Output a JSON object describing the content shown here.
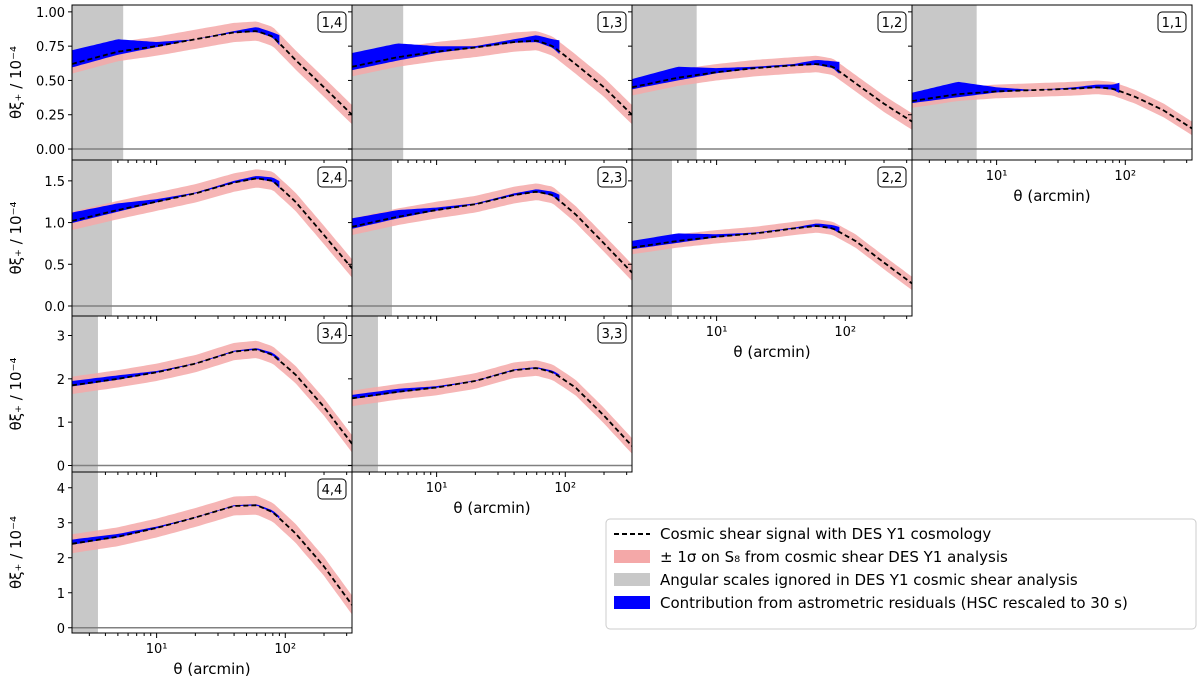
{
  "figure": {
    "ylabel": "θξ₊ / 10⁻⁴",
    "xlabel": "θ (arcmin)",
    "colors": {
      "signal": "#000000",
      "sigma_band": "#f4a8a8",
      "ignored": "#c8c8c8",
      "astrometric": "#0000ff",
      "zero_line": "#808080"
    }
  },
  "legend": {
    "placement": "lower-right",
    "entries": [
      {
        "key": "signal",
        "label": "Cosmic shear signal with DES Y1 cosmology"
      },
      {
        "key": "sigma_band",
        "label": "± 1σ on S₈ from cosmic shear DES Y1 analysis"
      },
      {
        "key": "ignored",
        "label": "Angular scales ignored in DES Y1 cosmic shear analysis"
      },
      {
        "key": "astrometric",
        "label": "Contribution from astrometric residuals (HSC rescaled to 30 s)"
      }
    ]
  },
  "chart_data": [
    {
      "type": "line",
      "panel": "1,4",
      "row": 1,
      "col": 1,
      "xscale": "log",
      "xlim": [
        2.2,
        330
      ],
      "ylim": [
        -0.08,
        1.05
      ],
      "yticks": [
        0,
        0.25,
        0.5,
        0.75,
        1
      ],
      "ytick_labels": [
        "0.00",
        "0.25",
        "0.50",
        "0.75",
        "1.00"
      ],
      "ignored_max": 5.5,
      "signal_x": [
        2.2,
        5,
        10,
        20,
        40,
        60,
        80,
        120,
        200,
        330
      ],
      "signal_y": [
        0.62,
        0.71,
        0.75,
        0.8,
        0.85,
        0.86,
        0.82,
        0.65,
        0.45,
        0.25
      ],
      "band_width": 0.07,
      "excess_x": [
        2.2,
        5,
        10,
        20,
        40,
        60,
        80,
        90
      ],
      "excess_y": [
        0.1,
        0.09,
        0.03,
        0.0,
        0.01,
        0.03,
        0.03,
        0.06
      ]
    },
    {
      "type": "line",
      "panel": "1,3",
      "row": 1,
      "col": 2,
      "xscale": "log",
      "xlim": [
        2.2,
        330
      ],
      "ylim": [
        -0.08,
        1.05
      ],
      "yticks": [
        0,
        0.25,
        0.5,
        0.75,
        1
      ],
      "ytick_labels": [],
      "ignored_max": 5.5,
      "signal_x": [
        2.2,
        5,
        10,
        20,
        40,
        60,
        80,
        120,
        200,
        330
      ],
      "signal_y": [
        0.6,
        0.67,
        0.71,
        0.74,
        0.78,
        0.79,
        0.75,
        0.62,
        0.45,
        0.25
      ],
      "band_width": 0.07,
      "excess_x": [
        2.2,
        5,
        10,
        20,
        40,
        60,
        80,
        90
      ],
      "excess_y": [
        0.1,
        0.1,
        0.04,
        0.01,
        0.02,
        0.04,
        0.05,
        0.08
      ]
    },
    {
      "type": "line",
      "panel": "1,2",
      "row": 1,
      "col": 3,
      "xscale": "log",
      "xlim": [
        2.2,
        330
      ],
      "ylim": [
        -0.08,
        1.05
      ],
      "yticks": [
        0,
        0.25,
        0.5,
        0.75,
        1
      ],
      "ytick_labels": [],
      "ignored_max": 7,
      "signal_x": [
        2.2,
        5,
        10,
        20,
        40,
        60,
        80,
        120,
        200,
        330
      ],
      "signal_y": [
        0.45,
        0.52,
        0.56,
        0.59,
        0.61,
        0.62,
        0.6,
        0.48,
        0.33,
        0.2
      ],
      "band_width": 0.06,
      "excess_x": [
        2.2,
        5,
        10,
        20,
        40,
        60,
        80,
        90
      ],
      "excess_y": [
        0.06,
        0.08,
        0.03,
        0.01,
        0.01,
        0.03,
        0.04,
        0.07
      ]
    },
    {
      "type": "line",
      "panel": "1,1",
      "row": 1,
      "col": 4,
      "xscale": "log",
      "xlim": [
        2.2,
        330
      ],
      "ylim": [
        -0.08,
        1.05
      ],
      "yticks": [
        0,
        0.25,
        0.5,
        0.75,
        1
      ],
      "ytick_labels": [],
      "ignored_max": 7,
      "signal_x": [
        2.2,
        5,
        10,
        20,
        40,
        60,
        80,
        120,
        200,
        330
      ],
      "signal_y": [
        0.35,
        0.4,
        0.42,
        0.43,
        0.44,
        0.45,
        0.44,
        0.38,
        0.28,
        0.15
      ],
      "band_width": 0.05,
      "excess_x": [
        2.2,
        5,
        10,
        20,
        40,
        60,
        80,
        90
      ],
      "excess_y": [
        0.06,
        0.09,
        0.03,
        0.0,
        0.01,
        0.02,
        0.03,
        0.06
      ],
      "xticks": [
        10,
        100
      ],
      "xtick_labels": [
        "10¹",
        "10²"
      ],
      "show_xlabel": true
    },
    {
      "type": "line",
      "panel": "2,4",
      "row": 2,
      "col": 1,
      "xscale": "log",
      "xlim": [
        2.2,
        330
      ],
      "ylim": [
        -0.12,
        1.75
      ],
      "yticks": [
        0,
        0.5,
        1,
        1.5
      ],
      "ytick_labels": [
        "0.0",
        "0.5",
        "1.0",
        "1.5"
      ],
      "ignored_max": 4.5,
      "signal_x": [
        2.2,
        5,
        10,
        20,
        40,
        60,
        80,
        120,
        200,
        330
      ],
      "signal_y": [
        1.02,
        1.15,
        1.25,
        1.35,
        1.48,
        1.53,
        1.5,
        1.25,
        0.85,
        0.45
      ],
      "band_width": 0.11,
      "excess_x": [
        2.2,
        5,
        10,
        20,
        40,
        60,
        80,
        90
      ],
      "excess_y": [
        0.1,
        0.08,
        0.03,
        0.01,
        0.02,
        0.03,
        0.04,
        0.07
      ]
    },
    {
      "type": "line",
      "panel": "2,3",
      "row": 2,
      "col": 2,
      "xscale": "log",
      "xlim": [
        2.2,
        330
      ],
      "ylim": [
        -0.12,
        1.75
      ],
      "yticks": [
        0,
        0.5,
        1,
        1.5
      ],
      "ytick_labels": [],
      "ignored_max": 4.5,
      "signal_x": [
        2.2,
        5,
        10,
        20,
        40,
        60,
        80,
        120,
        200,
        330
      ],
      "signal_y": [
        0.95,
        1.07,
        1.15,
        1.22,
        1.33,
        1.37,
        1.33,
        1.1,
        0.75,
        0.4
      ],
      "band_width": 0.1,
      "excess_x": [
        2.2,
        5,
        10,
        20,
        40,
        60,
        80,
        90
      ],
      "excess_y": [
        0.1,
        0.08,
        0.03,
        0.01,
        0.02,
        0.03,
        0.04,
        0.07
      ]
    },
    {
      "type": "line",
      "panel": "2,2",
      "row": 2,
      "col": 3,
      "xscale": "log",
      "xlim": [
        2.2,
        330
      ],
      "ylim": [
        -0.12,
        1.75
      ],
      "yticks": [
        0,
        0.5,
        1,
        1.5
      ],
      "ytick_labels": [],
      "ignored_max": 4.5,
      "signal_x": [
        2.2,
        5,
        10,
        20,
        40,
        60,
        80,
        120,
        200,
        330
      ],
      "signal_y": [
        0.7,
        0.78,
        0.83,
        0.87,
        0.93,
        0.96,
        0.93,
        0.78,
        0.52,
        0.27
      ],
      "band_width": 0.08,
      "excess_x": [
        2.2,
        5,
        10,
        20,
        40,
        60,
        80,
        90
      ],
      "excess_y": [
        0.08,
        0.09,
        0.03,
        0.01,
        0.01,
        0.03,
        0.04,
        0.06
      ],
      "xticks": [
        10,
        100
      ],
      "xtick_labels": [
        "10¹",
        "10²"
      ],
      "show_xlabel": true
    },
    {
      "type": "line",
      "panel": "3,4",
      "row": 3,
      "col": 1,
      "xscale": "log",
      "xlim": [
        2.2,
        330
      ],
      "ylim": [
        -0.15,
        3.45
      ],
      "yticks": [
        0,
        1,
        2,
        3
      ],
      "ytick_labels": [
        "0",
        "1",
        "2",
        "3"
      ],
      "ignored_max": 3.5,
      "signal_x": [
        2.2,
        5,
        10,
        20,
        40,
        60,
        80,
        120,
        200,
        330
      ],
      "signal_y": [
        1.85,
        2.0,
        2.15,
        2.35,
        2.63,
        2.68,
        2.55,
        2.1,
        1.35,
        0.5
      ],
      "band_width": 0.2,
      "excess_x": [
        2.2,
        5,
        10,
        20,
        40,
        60,
        80,
        90
      ],
      "excess_y": [
        0.1,
        0.08,
        0.03,
        0.01,
        0.02,
        0.03,
        0.05,
        0.06
      ]
    },
    {
      "type": "line",
      "panel": "3,3",
      "row": 3,
      "col": 2,
      "xscale": "log",
      "xlim": [
        2.2,
        330
      ],
      "ylim": [
        -0.15,
        3.45
      ],
      "yticks": [
        0,
        1,
        2,
        3
      ],
      "ytick_labels": [],
      "ignored_max": 3.5,
      "signal_x": [
        2.2,
        5,
        10,
        20,
        40,
        60,
        80,
        120,
        200,
        330
      ],
      "signal_y": [
        1.55,
        1.7,
        1.8,
        1.95,
        2.2,
        2.25,
        2.15,
        1.8,
        1.15,
        0.45
      ],
      "band_width": 0.18,
      "excess_x": [
        2.2,
        5,
        10,
        20,
        40,
        60,
        80,
        90
      ],
      "excess_y": [
        0.08,
        0.07,
        0.03,
        0.01,
        0.02,
        0.02,
        0.04,
        0.05
      ],
      "xticks": [
        10,
        100
      ],
      "xtick_labels": [
        "10¹",
        "10²"
      ],
      "show_xlabel": true
    },
    {
      "type": "line",
      "panel": "4,4",
      "row": 4,
      "col": 1,
      "xscale": "log",
      "xlim": [
        2.2,
        330
      ],
      "ylim": [
        -0.15,
        4.45
      ],
      "yticks": [
        0,
        1,
        2,
        3,
        4
      ],
      "ytick_labels": [
        "0",
        "1",
        "2",
        "3",
        "4"
      ],
      "ignored_max": 3.5,
      "signal_x": [
        2.2,
        5,
        10,
        20,
        40,
        60,
        80,
        120,
        200,
        330
      ],
      "signal_y": [
        2.4,
        2.6,
        2.85,
        3.15,
        3.48,
        3.5,
        3.3,
        2.7,
        1.75,
        0.65
      ],
      "band_width": 0.27,
      "excess_x": [
        2.2,
        5,
        10,
        20,
        40,
        60,
        80,
        90
      ],
      "excess_y": [
        0.12,
        0.08,
        0.04,
        0.01,
        0.02,
        0.03,
        0.05,
        0.06
      ],
      "xticks": [
        10,
        100
      ],
      "xtick_labels": [
        "10¹",
        "10²"
      ],
      "show_xlabel": true
    }
  ]
}
